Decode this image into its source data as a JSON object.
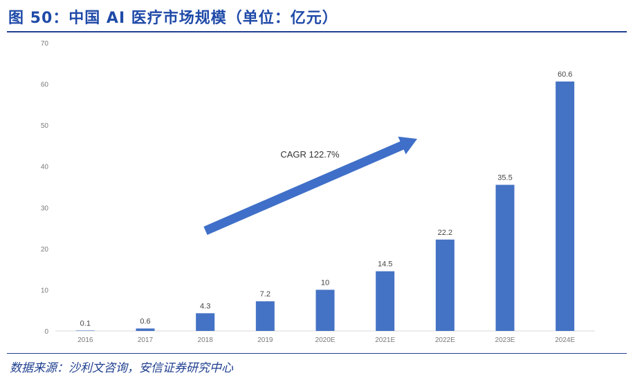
{
  "title": "图 50：中国 AI 医疗市场规模（单位：亿元）",
  "source": "数据来源：沙利文咨询，安信证券研究中心",
  "chart_data": {
    "type": "bar",
    "categories": [
      "2016",
      "2017",
      "2018",
      "2019",
      "2020E",
      "2021E",
      "2022E",
      "2023E",
      "2024E"
    ],
    "values": [
      0.1,
      0.6,
      4.3,
      7.2,
      10,
      14.5,
      22.2,
      35.5,
      60.6
    ],
    "data_labels": [
      "0.1",
      "0.6",
      "4.3",
      "7.2",
      "10",
      "14.5",
      "22.2",
      "35.5",
      "60.6"
    ],
    "yticks": [
      0,
      10,
      20,
      30,
      40,
      50,
      60,
      70
    ],
    "ylim": [
      0,
      70
    ],
    "grid": false,
    "bar_color": "#4472c4",
    "annotation": "CAGR 122.7%",
    "arrow_color": "#3f6fc8"
  }
}
